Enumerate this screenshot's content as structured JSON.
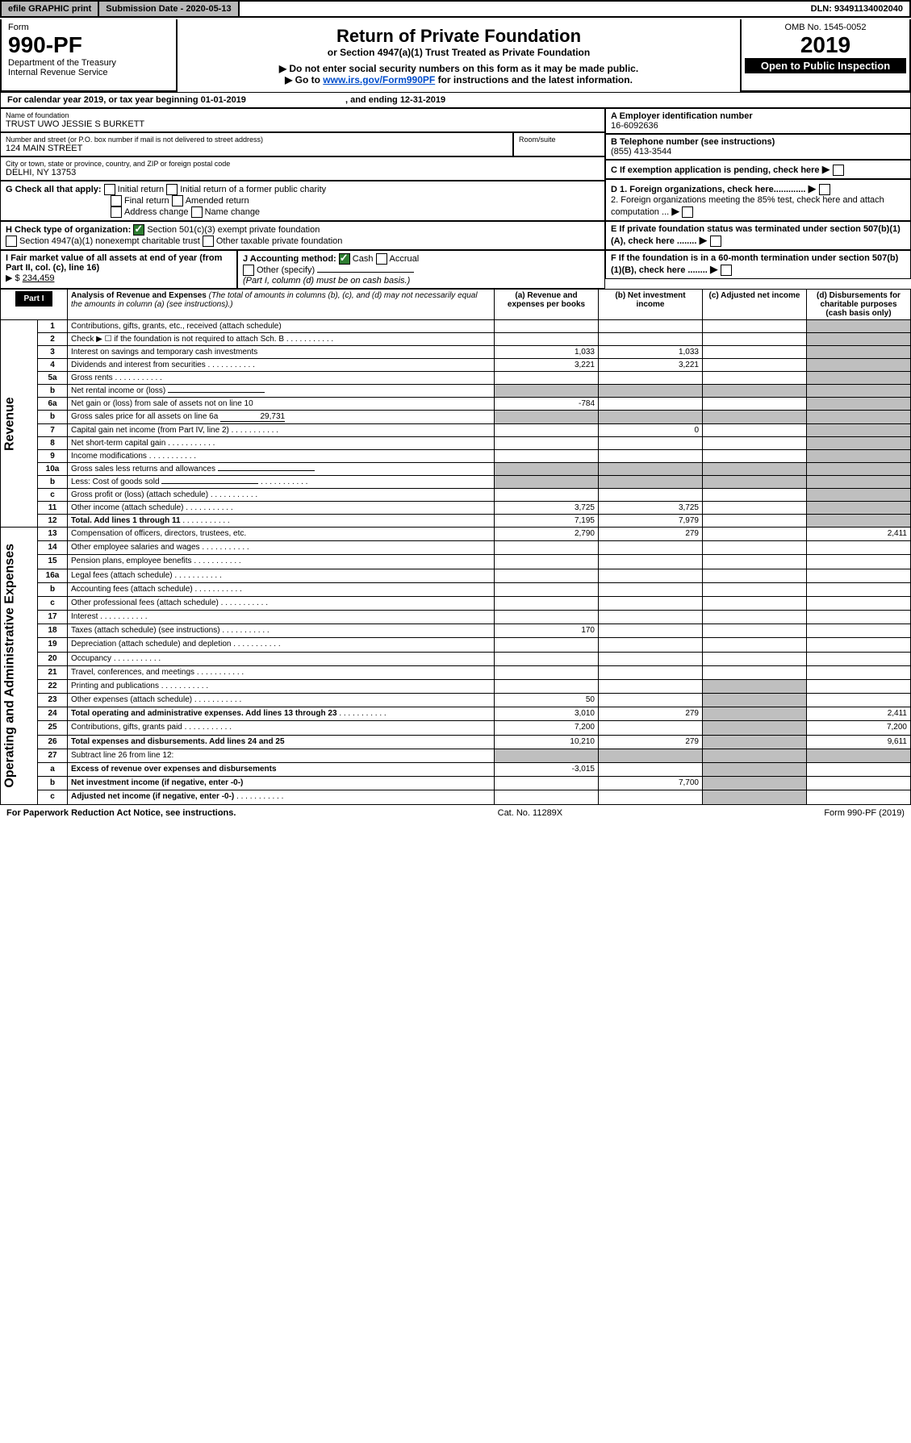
{
  "topbar": {
    "efile": "efile GRAPHIC print",
    "subdate_lbl": "Submission Date - 2020-05-13",
    "dln": "DLN: 93491134002040"
  },
  "header": {
    "form_word": "Form",
    "form_no": "990-PF",
    "dept": "Department of the Treasury",
    "irs": "Internal Revenue Service",
    "title": "Return of Private Foundation",
    "subtitle": "or Section 4947(a)(1) Trust Treated as Private Foundation",
    "warn": "▶ Do not enter social security numbers on this form as it may be made public.",
    "goto_pre": "▶ Go to ",
    "goto_link": "www.irs.gov/Form990PF",
    "goto_post": " for instructions and the latest information.",
    "omb": "OMB No. 1545-0052",
    "year": "2019",
    "inspect": "Open to Public Inspection"
  },
  "cal": {
    "text": "For calendar year 2019, or tax year beginning 01-01-2019",
    "end": ", and ending 12-31-2019"
  },
  "info": {
    "name_lbl": "Name of foundation",
    "name": "TRUST UWO JESSIE S BURKETT",
    "a_lbl": "A Employer identification number",
    "a_val": "16-6092636",
    "addr_lbl": "Number and street (or P.O. box number if mail is not delivered to street address)",
    "addr": "124 MAIN STREET",
    "room_lbl": "Room/suite",
    "b_lbl": "B Telephone number (see instructions)",
    "b_val": "(855) 413-3544",
    "city_lbl": "City or town, state or province, country, and ZIP or foreign postal code",
    "city": "DELHI, NY  13753",
    "c_lbl": "C If exemption application is pending, check here",
    "g_lbl": "G Check all that apply:",
    "g1": "Initial return",
    "g2": "Initial return of a former public charity",
    "g3": "Final return",
    "g4": "Amended return",
    "g5": "Address change",
    "g6": "Name change",
    "d1": "D 1. Foreign organizations, check here.............",
    "d2": "2. Foreign organizations meeting the 85% test, check here and attach computation ...",
    "h_lbl": "H Check type of organization:",
    "h1": "Section 501(c)(3) exempt private foundation",
    "h2": "Section 4947(a)(1) nonexempt charitable trust",
    "h3": "Other taxable private foundation",
    "e_lbl": "E If private foundation status was terminated under section 507(b)(1)(A), check here ........",
    "i_lbl": "I Fair market value of all assets at end of year (from Part II, col. (c), line 16)",
    "i_val": "234,459",
    "i_pre": "▶ $",
    "j_lbl": "J Accounting method:",
    "j1": "Cash",
    "j2": "Accrual",
    "j3": "Other (specify)",
    "j_note": "(Part I, column (d) must be on cash basis.)",
    "f_lbl": "F If the foundation is in a 60-month termination under section 507(b)(1)(B), check here ........"
  },
  "part1": {
    "label": "Part I",
    "title": "Analysis of Revenue and Expenses",
    "note": "(The total of amounts in columns (b), (c), and (d) may not necessarily equal the amounts in column (a) (see instructions).)",
    "cols": {
      "a": "(a) Revenue and expenses per books",
      "b": "(b) Net investment income",
      "c": "(c) Adjusted net income",
      "d": "(d) Disbursements for charitable purposes (cash basis only)"
    }
  },
  "sections": {
    "rev": "Revenue",
    "exp": "Operating and Administrative Expenses"
  },
  "rows": [
    {
      "n": "1",
      "t": "Contributions, gifts, grants, etc., received (attach schedule)"
    },
    {
      "n": "2",
      "t": "Check ▶ ☐ if the foundation is not required to attach Sch. B",
      "dots": true
    },
    {
      "n": "3",
      "t": "Interest on savings and temporary cash investments",
      "a": "1,033",
      "b": "1,033"
    },
    {
      "n": "4",
      "t": "Dividends and interest from securities",
      "dots": true,
      "a": "3,221",
      "b": "3,221"
    },
    {
      "n": "5a",
      "t": "Gross rents",
      "dots": true
    },
    {
      "n": "b",
      "t": "Net rental income or (loss)",
      "line": true
    },
    {
      "n": "6a",
      "t": "Net gain or (loss) from sale of assets not on line 10",
      "a": "-784"
    },
    {
      "n": "b",
      "t": "Gross sales price for all assets on line 6a",
      "inline": "29,731"
    },
    {
      "n": "7",
      "t": "Capital gain net income (from Part IV, line 2)",
      "dots": true,
      "b": "0"
    },
    {
      "n": "8",
      "t": "Net short-term capital gain",
      "dots": true
    },
    {
      "n": "9",
      "t": "Income modifications",
      "dots": true
    },
    {
      "n": "10a",
      "t": "Gross sales less returns and allowances",
      "line": true
    },
    {
      "n": "b",
      "t": "Less: Cost of goods sold",
      "dots": true,
      "line": true
    },
    {
      "n": "c",
      "t": "Gross profit or (loss) (attach schedule)",
      "dots": true
    },
    {
      "n": "11",
      "t": "Other income (attach schedule)",
      "dots": true,
      "a": "3,725",
      "b": "3,725"
    },
    {
      "n": "12",
      "t": "Total. Add lines 1 through 11",
      "dots": true,
      "bold": true,
      "a": "7,195",
      "b": "7,979"
    },
    {
      "n": "13",
      "t": "Compensation of officers, directors, trustees, etc.",
      "a": "2,790",
      "b": "279",
      "d": "2,411",
      "sec": "exp"
    },
    {
      "n": "14",
      "t": "Other employee salaries and wages",
      "dots": true
    },
    {
      "n": "15",
      "t": "Pension plans, employee benefits",
      "dots": true
    },
    {
      "n": "16a",
      "t": "Legal fees (attach schedule)",
      "dots": true
    },
    {
      "n": "b",
      "t": "Accounting fees (attach schedule)",
      "dots": true
    },
    {
      "n": "c",
      "t": "Other professional fees (attach schedule)",
      "dots": true
    },
    {
      "n": "17",
      "t": "Interest",
      "dots": true
    },
    {
      "n": "18",
      "t": "Taxes (attach schedule) (see instructions)",
      "dots": true,
      "a": "170"
    },
    {
      "n": "19",
      "t": "Depreciation (attach schedule) and depletion",
      "dots": true
    },
    {
      "n": "20",
      "t": "Occupancy",
      "dots": true
    },
    {
      "n": "21",
      "t": "Travel, conferences, and meetings",
      "dots": true
    },
    {
      "n": "22",
      "t": "Printing and publications",
      "dots": true
    },
    {
      "n": "23",
      "t": "Other expenses (attach schedule)",
      "dots": true,
      "a": "50"
    },
    {
      "n": "24",
      "t": "Total operating and administrative expenses. Add lines 13 through 23",
      "dots": true,
      "bold": true,
      "a": "3,010",
      "b": "279",
      "d": "2,411"
    },
    {
      "n": "25",
      "t": "Contributions, gifts, grants paid",
      "dots": true,
      "a": "7,200",
      "d": "7,200"
    },
    {
      "n": "26",
      "t": "Total expenses and disbursements. Add lines 24 and 25",
      "bold": true,
      "a": "10,210",
      "b": "279",
      "d": "9,611"
    },
    {
      "n": "27",
      "t": "Subtract line 26 from line 12:"
    },
    {
      "n": "a",
      "t": "Excess of revenue over expenses and disbursements",
      "bold": true,
      "a": "-3,015"
    },
    {
      "n": "b",
      "t": "Net investment income (if negative, enter -0-)",
      "bold": true,
      "b": "7,700"
    },
    {
      "n": "c",
      "t": "Adjusted net income (if negative, enter -0-)",
      "bold": true,
      "dots": true
    }
  ],
  "footer": {
    "left": "For Paperwork Reduction Act Notice, see instructions.",
    "mid": "Cat. No. 11289X",
    "right": "Form 990-PF (2019)"
  }
}
